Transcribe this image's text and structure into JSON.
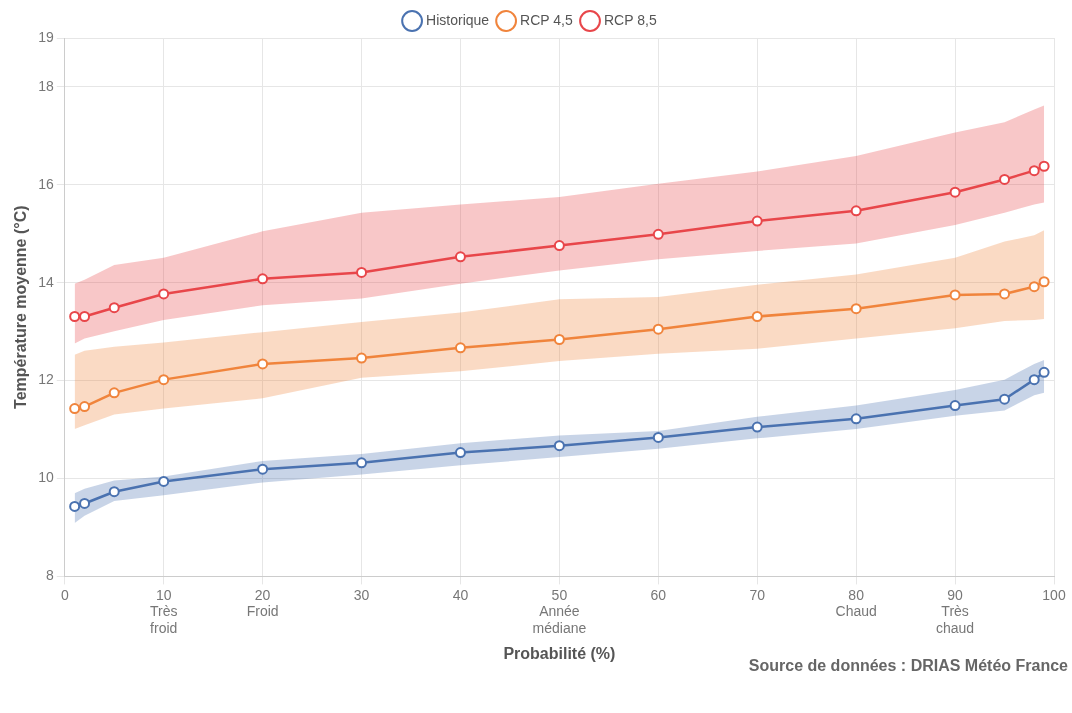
{
  "chart_data": {
    "type": "line",
    "xlabel": "Probabilité (%)",
    "ylabel": "Température moyenne (°C)",
    "xlim": [
      0,
      100
    ],
    "xticks": [
      0,
      {
        "value": 10,
        "label": "10\nTrès\nfroid"
      },
      {
        "value": 20,
        "label": "20\nFroid"
      },
      30,
      40,
      {
        "value": 50,
        "label": "50\nAnnée\nmédiane"
      },
      60,
      70,
      {
        "value": 80,
        "label": "80\nChaud"
      },
      {
        "value": 90,
        "label": "90\nTrès\nchaud"
      },
      100
    ],
    "ylim": [
      8,
      19
    ],
    "yticks": [
      8,
      10,
      12,
      14,
      16,
      18,
      19
    ],
    "x": [
      1,
      2,
      5,
      10,
      20,
      30,
      40,
      50,
      60,
      70,
      80,
      90,
      95,
      98,
      99
    ],
    "series": [
      {
        "name": "Historique",
        "color": "#4a72b0",
        "values": [
          9.43,
          9.49,
          9.73,
          9.94,
          10.19,
          10.32,
          10.53,
          10.67,
          10.84,
          11.05,
          11.22,
          11.49,
          11.62,
          12.02,
          12.17
        ],
        "lower": [
          9.09,
          9.24,
          9.54,
          9.66,
          9.92,
          10.08,
          10.27,
          10.44,
          10.61,
          10.82,
          11.01,
          11.28,
          11.39,
          11.7,
          11.75
        ],
        "upper": [
          9.7,
          9.79,
          9.96,
          10.04,
          10.36,
          10.5,
          10.72,
          10.88,
          10.97,
          11.26,
          11.49,
          11.81,
          12.02,
          12.34,
          12.42
        ]
      },
      {
        "name": "RCP 4,5",
        "color": "#f0843c",
        "values": [
          11.43,
          11.47,
          11.75,
          12.02,
          12.34,
          12.46,
          12.67,
          12.84,
          13.05,
          13.31,
          13.47,
          13.75,
          13.77,
          13.92,
          14.02
        ],
        "lower": [
          11.01,
          11.09,
          11.31,
          11.43,
          11.64,
          12.06,
          12.19,
          12.4,
          12.55,
          12.65,
          12.86,
          13.07,
          13.22,
          13.24,
          13.26
        ],
        "upper": [
          12.53,
          12.61,
          12.69,
          12.78,
          12.99,
          13.2,
          13.39,
          13.66,
          13.71,
          13.96,
          14.17,
          14.51,
          14.84,
          14.97,
          15.07
        ]
      },
      {
        "name": "RCP 8,5",
        "color": "#e8464a",
        "values": [
          13.31,
          13.31,
          13.49,
          13.77,
          14.08,
          14.21,
          14.53,
          14.76,
          14.99,
          15.26,
          15.47,
          15.85,
          16.11,
          16.29,
          16.38
        ],
        "lower": [
          12.76,
          12.86,
          13.01,
          13.24,
          13.54,
          13.68,
          13.98,
          14.25,
          14.48,
          14.65,
          14.8,
          15.18,
          15.43,
          15.6,
          15.64
        ],
        "upper": [
          13.98,
          14.06,
          14.36,
          14.51,
          15.05,
          15.43,
          15.6,
          15.75,
          16.02,
          16.27,
          16.59,
          17.07,
          17.28,
          17.54,
          17.62
        ]
      }
    ],
    "grid": true,
    "legend": "top",
    "marker": "circle",
    "line_style": "solid",
    "annotations": [
      "Source de données : DRIAS Météo France"
    ]
  }
}
